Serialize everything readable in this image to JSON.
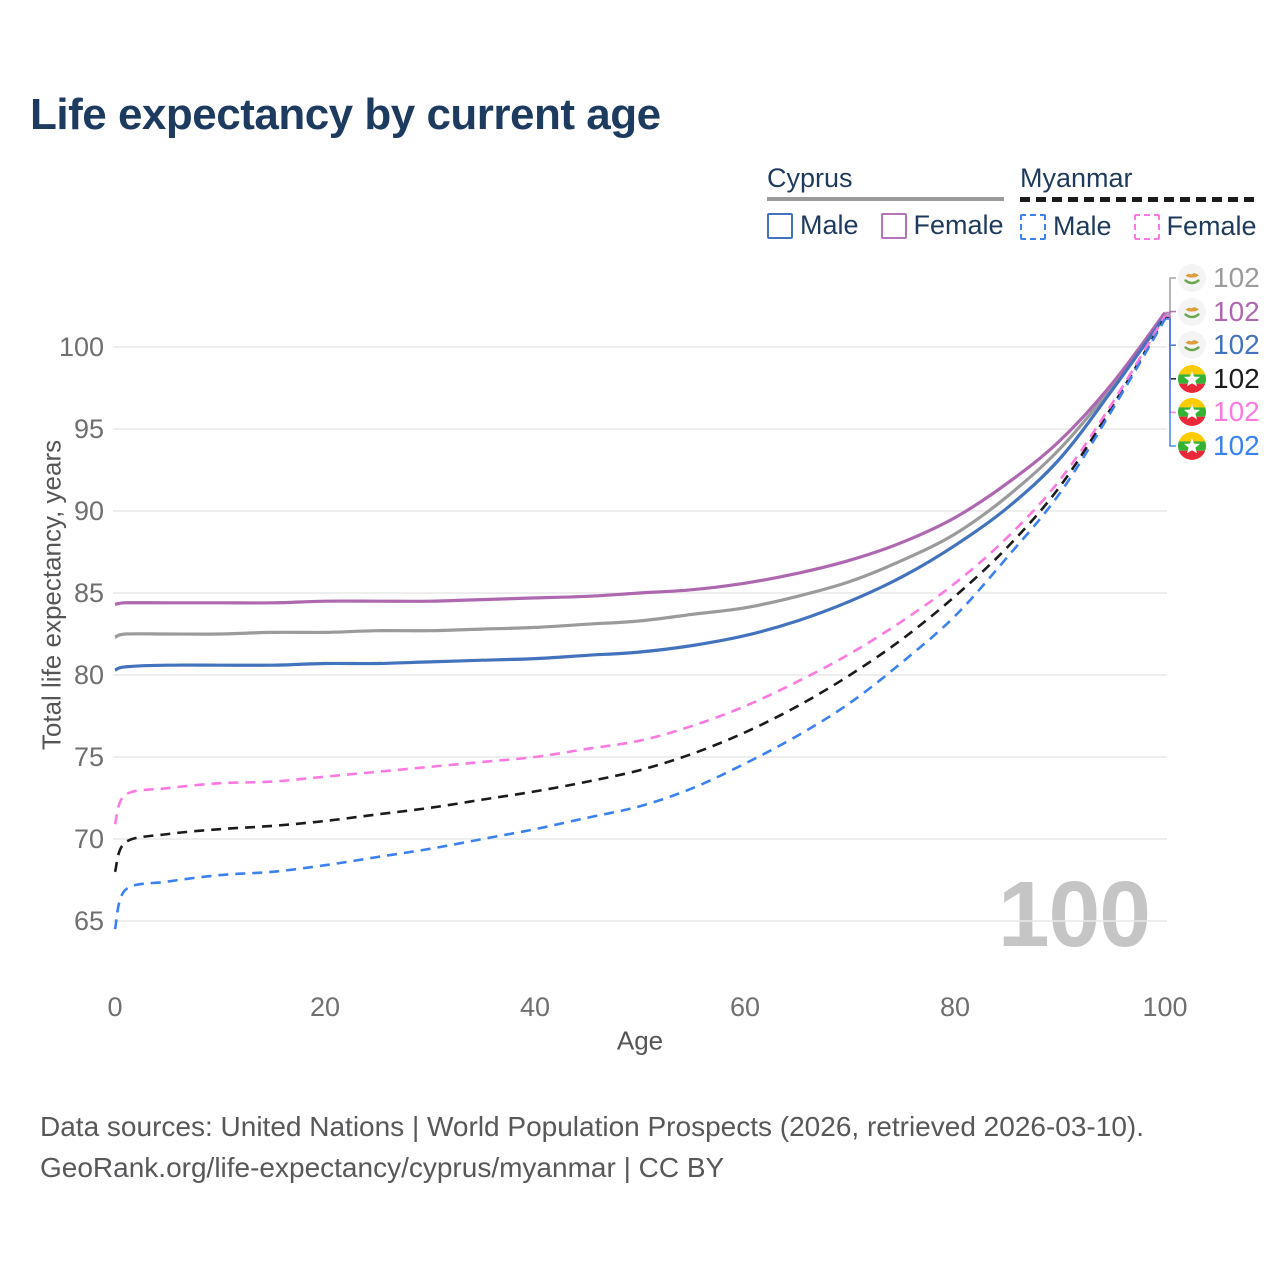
{
  "legend": {
    "groups": [
      {
        "label": "Cyprus",
        "underline_style": "solid",
        "underline_color": "#9b9b9b",
        "items": [
          {
            "label": "Male",
            "color": "#4373bd",
            "style": "solid"
          },
          {
            "label": "Female",
            "color": "#b273b8",
            "style": "solid"
          }
        ]
      },
      {
        "label": "Myanmar",
        "underline_style": "dashed",
        "underline_color": "#1c1c1c",
        "items": [
          {
            "label": "Male",
            "color": "#3b82f0",
            "style": "dashed"
          },
          {
            "label": "Female",
            "color": "#fb7ae1",
            "style": "dashed"
          }
        ]
      }
    ]
  },
  "chart_data": {
    "type": "line",
    "title": "Life expectancy by current age",
    "xlabel": "Age",
    "ylabel": "Total life expectancy, years",
    "xticks": [
      0,
      20,
      40,
      60,
      80,
      100
    ],
    "yticks": [
      65,
      70,
      75,
      80,
      85,
      90,
      95,
      100
    ],
    "xlim": [
      0,
      100
    ],
    "ylim": [
      63,
      103
    ],
    "grid": "horizontal-only",
    "watermark_age": "100",
    "x": [
      0,
      1,
      5,
      10,
      15,
      20,
      25,
      30,
      35,
      40,
      45,
      50,
      55,
      60,
      65,
      70,
      75,
      80,
      85,
      90,
      95,
      100
    ],
    "series": [
      {
        "id": "cyprus-total",
        "name": "Cyprus (both sexes)",
        "country": "cyprus",
        "color": "#9b9b9b",
        "style": "solid",
        "end_label": "102",
        "values": [
          82.3,
          82.5,
          82.5,
          82.5,
          82.6,
          82.6,
          82.7,
          82.7,
          82.8,
          82.9,
          83.1,
          83.3,
          83.7,
          84.1,
          84.8,
          85.7,
          87.0,
          88.6,
          90.9,
          93.8,
          97.6,
          102.0
        ]
      },
      {
        "id": "cyprus-female",
        "name": "Cyprus Female",
        "country": "cyprus",
        "color": "#ad68b0",
        "style": "solid",
        "end_label": "102",
        "values": [
          84.3,
          84.4,
          84.4,
          84.4,
          84.4,
          84.5,
          84.5,
          84.5,
          84.6,
          84.7,
          84.8,
          85.0,
          85.2,
          85.6,
          86.2,
          87.0,
          88.1,
          89.6,
          91.7,
          94.3,
          97.8,
          102.1
        ]
      },
      {
        "id": "cyprus-male",
        "name": "Cyprus Male",
        "country": "cyprus",
        "color": "#4373bd",
        "style": "solid",
        "end_label": "102",
        "values": [
          80.3,
          80.5,
          80.6,
          80.6,
          80.6,
          80.7,
          80.7,
          80.8,
          80.9,
          81.0,
          81.2,
          81.4,
          81.8,
          82.4,
          83.3,
          84.5,
          86.0,
          87.9,
          90.2,
          93.2,
          97.4,
          101.9
        ]
      },
      {
        "id": "myanmar-total",
        "name": "Myanmar (both sexes)",
        "country": "myanmar",
        "color": "#1b1b1b",
        "style": "dashed",
        "end_label": "102",
        "values": [
          68.0,
          69.8,
          70.3,
          70.6,
          70.8,
          71.1,
          71.5,
          71.9,
          72.4,
          72.9,
          73.5,
          74.2,
          75.2,
          76.5,
          78.1,
          80.0,
          82.2,
          84.8,
          87.8,
          91.5,
          96.4,
          101.8
        ]
      },
      {
        "id": "myanmar-female",
        "name": "Myanmar Female",
        "country": "myanmar",
        "color": "#fb7ae1",
        "style": "dashed",
        "end_label": "102",
        "values": [
          70.9,
          72.7,
          73.1,
          73.4,
          73.5,
          73.8,
          74.1,
          74.4,
          74.7,
          75.0,
          75.5,
          76.0,
          76.9,
          78.1,
          79.6,
          81.3,
          83.3,
          85.6,
          88.4,
          91.9,
          96.6,
          101.9
        ]
      },
      {
        "id": "myanmar-male",
        "name": "Myanmar Male",
        "country": "myanmar",
        "color": "#3b82f0",
        "style": "dashed",
        "end_label": "102",
        "values": [
          64.5,
          66.9,
          67.4,
          67.8,
          68.0,
          68.4,
          68.9,
          69.4,
          70.0,
          70.6,
          71.3,
          72.0,
          73.1,
          74.6,
          76.3,
          78.3,
          80.8,
          83.6,
          87.2,
          91.1,
          96.2,
          101.7
        ]
      }
    ]
  },
  "footer": {
    "line1": "Data sources: United Nations | World Population Prospects (2026, retrieved 2026-03-10).",
    "line2": "GeoRank.org/life-expectancy/cyprus/myanmar | CC BY"
  }
}
